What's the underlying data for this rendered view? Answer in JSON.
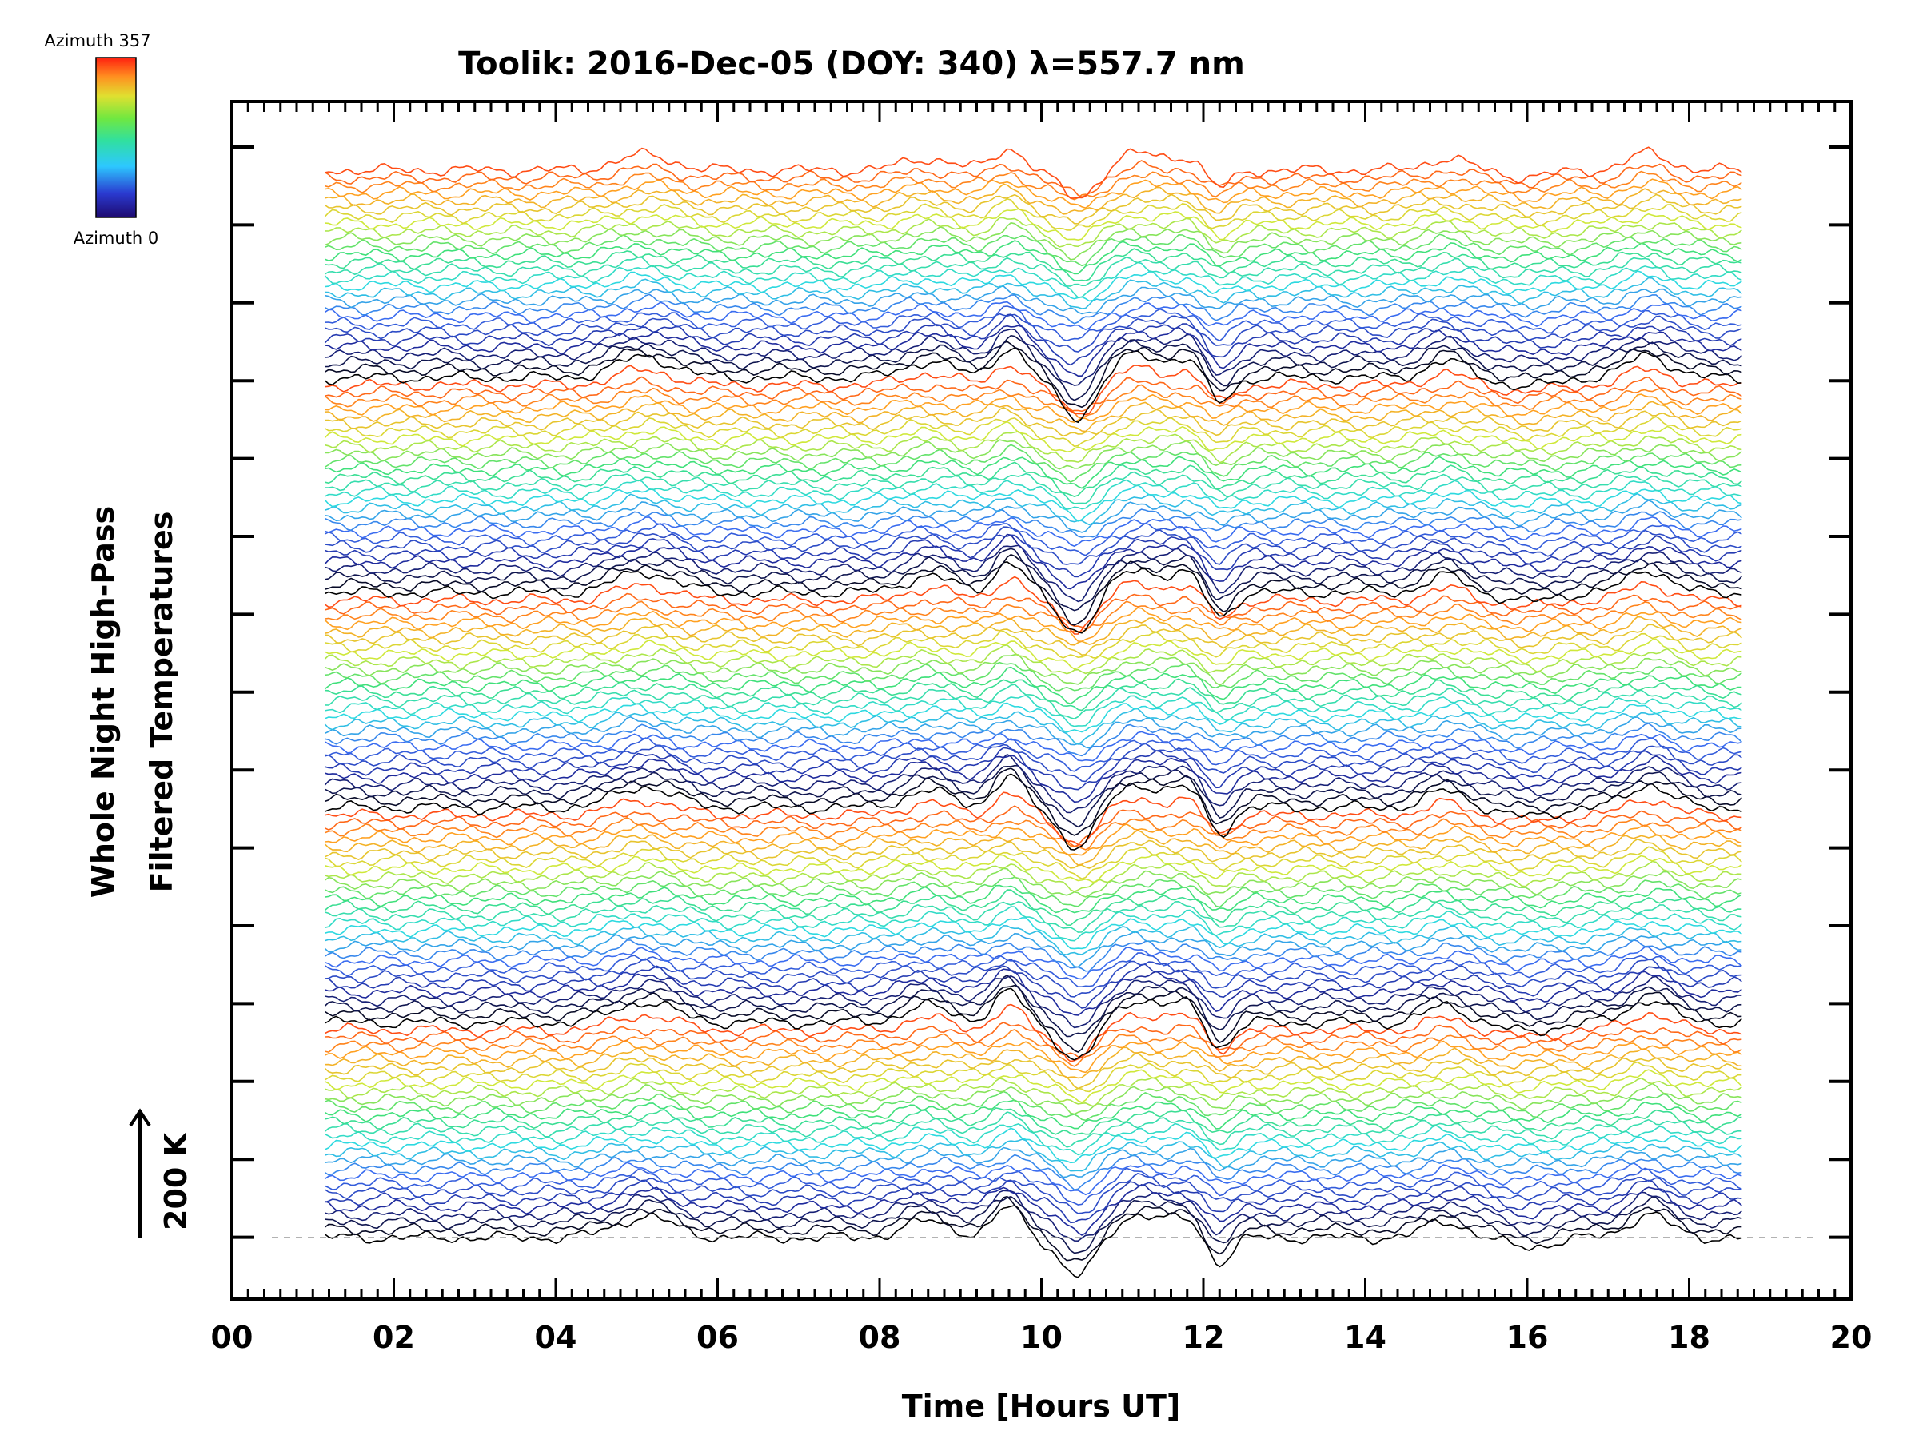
{
  "chart_data": {
    "type": "line",
    "title": "Toolik: 2016-Dec-05 (DOY: 340) λ=557.7 nm",
    "xlabel": "Time [Hours UT]",
    "ylabel_line1": "Whole Night High-Pass",
    "ylabel_line2": "Filtered Temperatures",
    "xlim": [
      0,
      20
    ],
    "x_tick_labels": [
      "00",
      "02",
      "04",
      "06",
      "08",
      "10",
      "12",
      "14",
      "16",
      "18",
      "20"
    ],
    "x_data_range_hours": [
      1.15,
      18.65
    ],
    "scale_bar_label": "200 K",
    "colorbar": {
      "top_label": "Azimuth 357",
      "bottom_label": "Azimuth 0",
      "azimuth_range_deg": [
        0,
        357
      ]
    },
    "traces": {
      "count": 140,
      "azimuth_cycles": 5,
      "events_hours": [
        5.1,
        8.6,
        9.6,
        10.45,
        11.2,
        11.8,
        12.2,
        15.0,
        17.5
      ],
      "palette_low_to_high": [
        "#000000",
        "#1e2a9c",
        "#3a6cf0",
        "#2dd9e0",
        "#3fe07a",
        "#cfe83a",
        "#ffa020",
        "#ff3010"
      ]
    }
  }
}
